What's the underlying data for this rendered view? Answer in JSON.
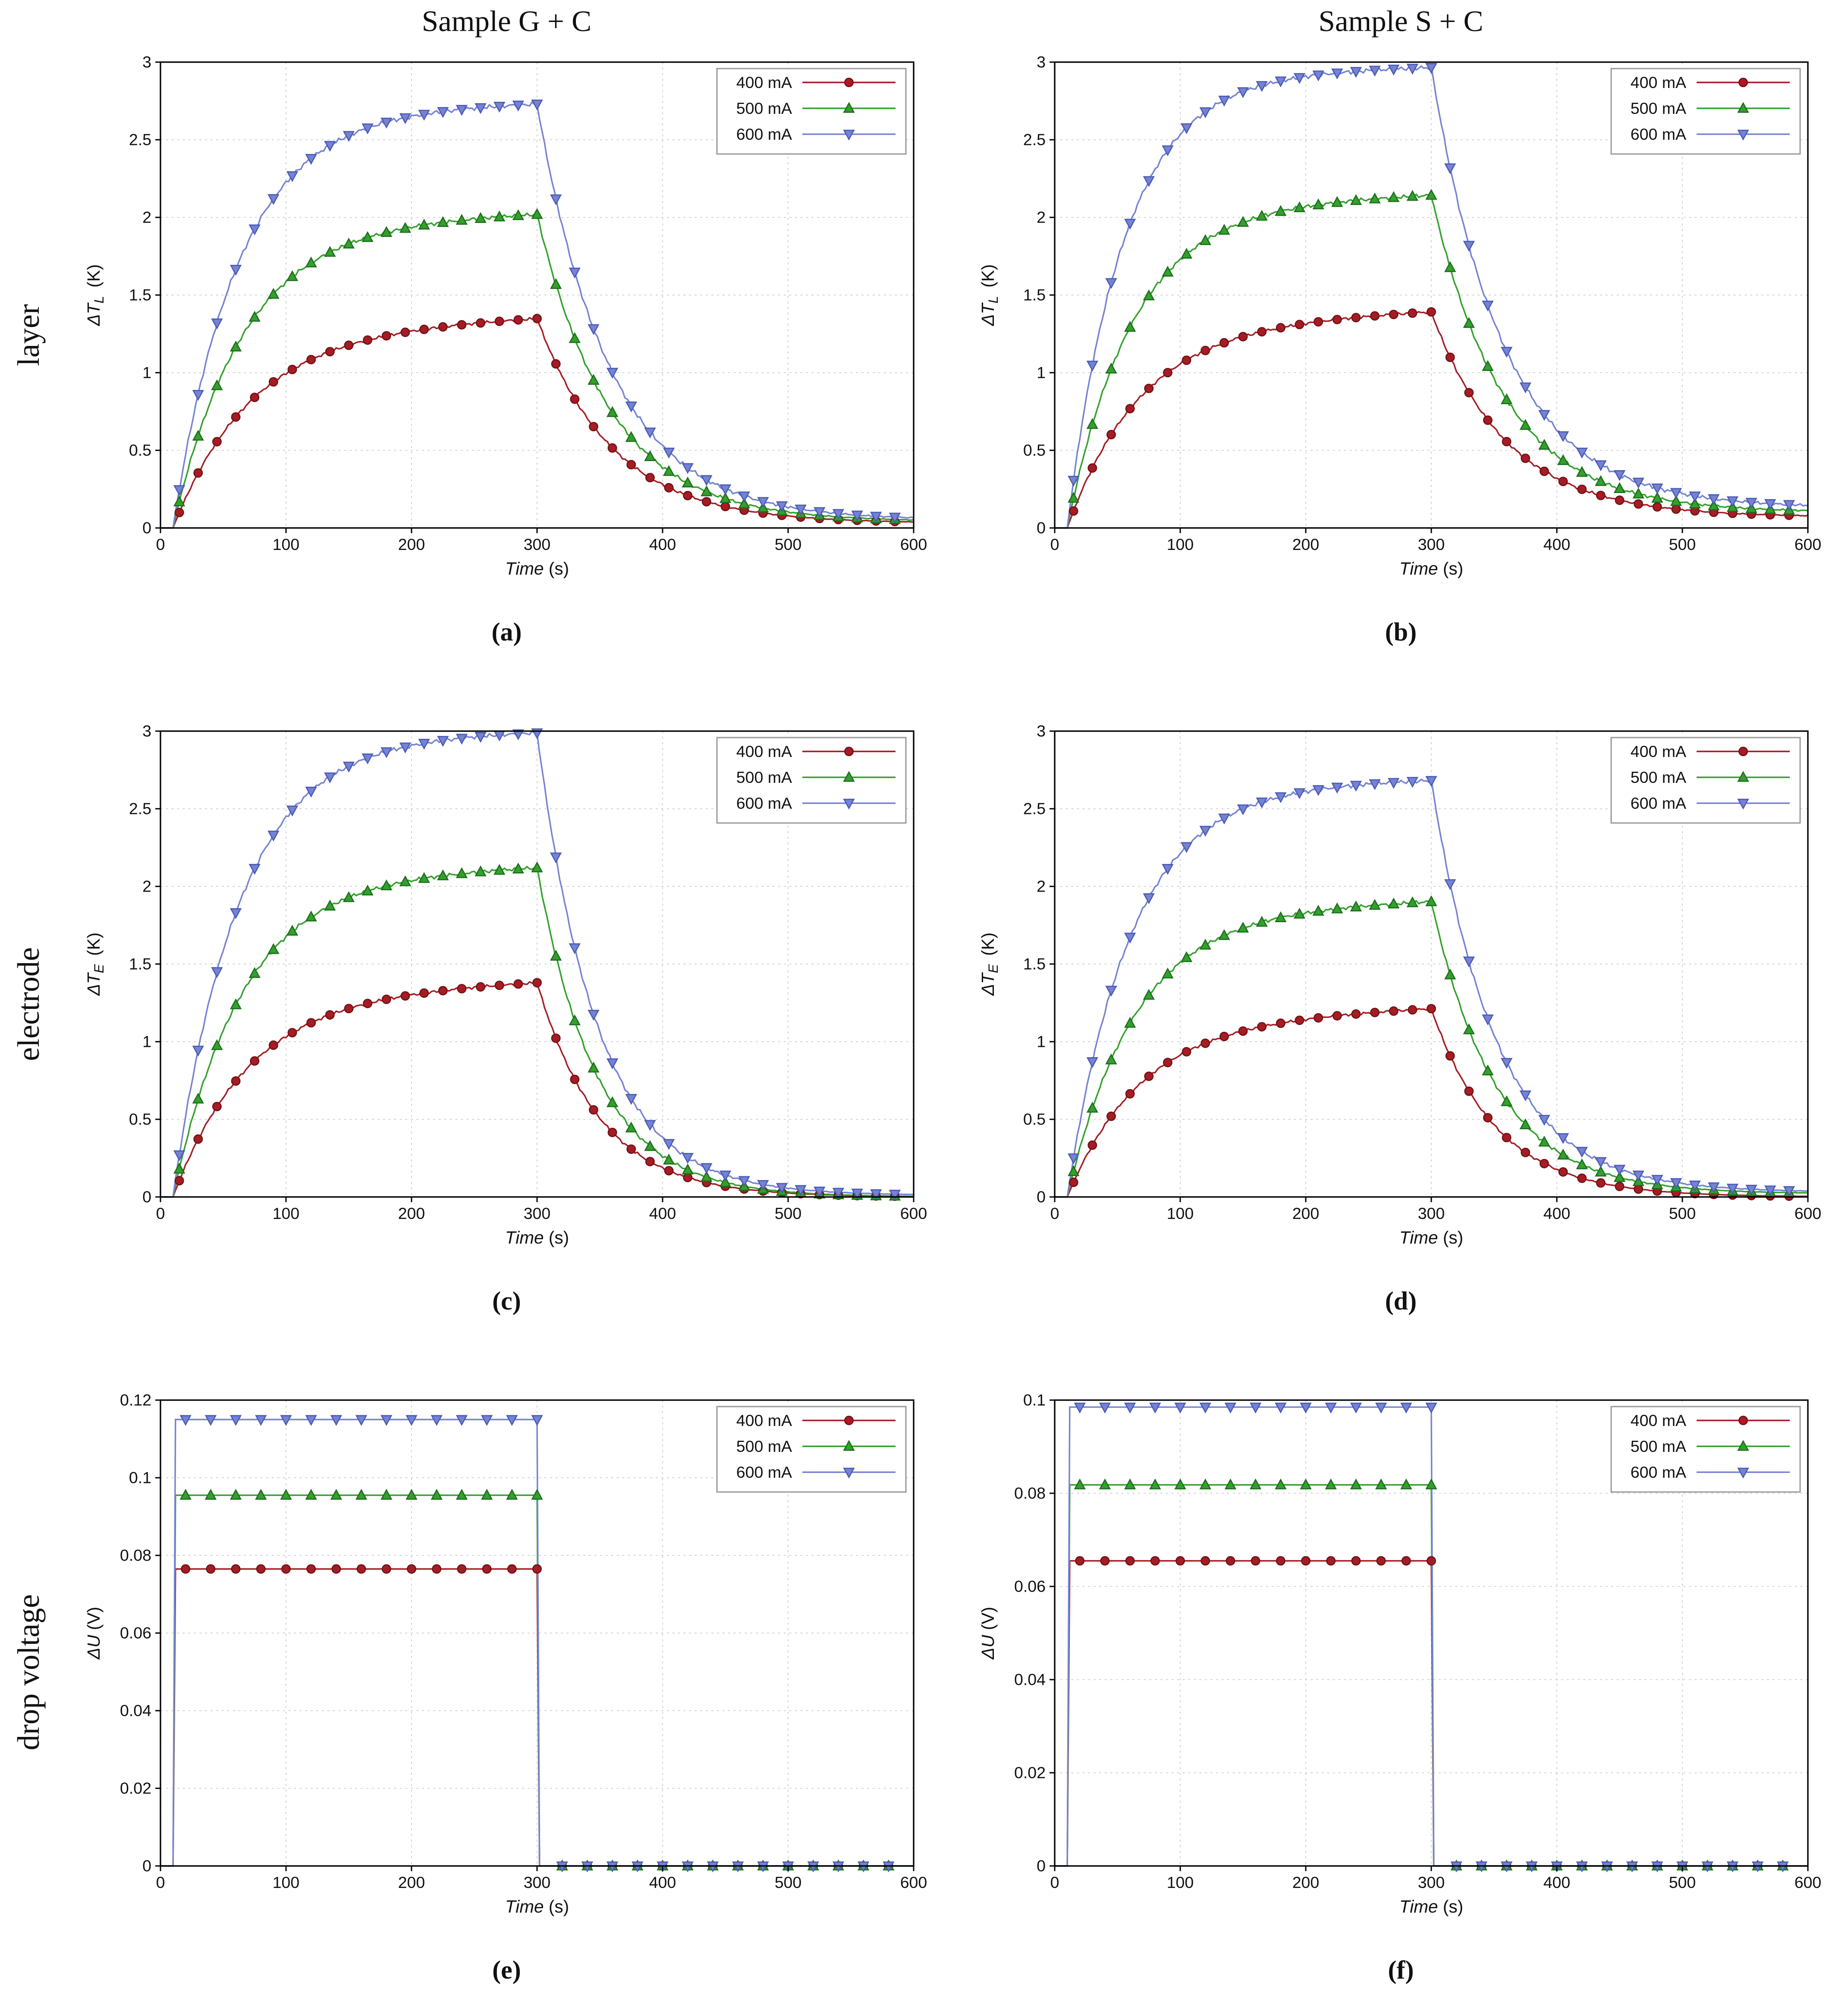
{
  "figure": {
    "row_labels": [
      "layer",
      "electrode",
      "drop voltage"
    ]
  },
  "chart_data": [
    {
      "id": "a",
      "caption": "(a)",
      "title": "Sample G + C",
      "type": "line",
      "xlabel": {
        "text": "Time",
        "unit": "(s)"
      },
      "ylabel": {
        "delta": "Δ",
        "var": "T",
        "sub": "L",
        "unit": "(K)"
      },
      "xlim": [
        0,
        600
      ],
      "ylim": [
        0,
        3
      ],
      "xticks": [
        0,
        100,
        200,
        300,
        400,
        500,
        600
      ],
      "yticks": [
        0,
        0.5,
        1,
        1.5,
        2,
        2.5,
        3
      ],
      "legend_position": "top-right",
      "marker_step": 15,
      "series": [
        {
          "name": "400 mA",
          "color": "#a61c24",
          "edge": "#6f1216",
          "marker": "circle",
          "model": "rise-decay",
          "t_on": 10,
          "t_off": 300,
          "plateau": 1.36,
          "drift": 0.1,
          "tau_rise": 62,
          "tau_decay": 60,
          "end": 0.03,
          "noise": 0.01
        },
        {
          "name": "500 mA",
          "color": "#33a02c",
          "edge": "#1d6e1d",
          "marker": "triangle-up",
          "model": "rise-decay",
          "t_on": 10,
          "t_off": 300,
          "plateau": 2.03,
          "drift": 0.08,
          "tau_rise": 56,
          "tau_decay": 58,
          "end": 0.04,
          "noise": 0.013
        },
        {
          "name": "600 mA",
          "color": "#7583d1",
          "edge": "#4a5ab8",
          "marker": "triangle-down",
          "model": "rise-decay",
          "t_on": 10,
          "t_off": 300,
          "plateau": 2.74,
          "drift": 0.06,
          "tau_rise": 52,
          "tau_decay": 58,
          "end": 0.05,
          "noise": 0.015
        }
      ]
    },
    {
      "id": "b",
      "caption": "(b)",
      "title": "Sample S + C",
      "type": "line",
      "xlabel": {
        "text": "Time",
        "unit": "(s)"
      },
      "ylabel": {
        "delta": "Δ",
        "var": "T",
        "sub": "L",
        "unit": "(K)"
      },
      "xlim": [
        0,
        600
      ],
      "ylim": [
        0,
        3
      ],
      "xticks": [
        0,
        100,
        200,
        300,
        400,
        500,
        600
      ],
      "yticks": [
        0,
        0.5,
        1,
        1.5,
        2,
        2.5,
        3
      ],
      "legend_position": "top-right",
      "marker_step": 15,
      "series": [
        {
          "name": "400 mA",
          "color": "#a61c24",
          "edge": "#6f1216",
          "marker": "circle",
          "model": "rise-decay",
          "t_on": 10,
          "t_off": 300,
          "plateau": 1.4,
          "drift": 0.1,
          "tau_rise": 58,
          "tau_decay": 60,
          "end": 0.07,
          "noise": 0.01
        },
        {
          "name": "500 mA",
          "color": "#33a02c",
          "edge": "#1d6e1d",
          "marker": "triangle-up",
          "model": "rise-decay",
          "t_on": 10,
          "t_off": 300,
          "plateau": 2.15,
          "drift": 0.08,
          "tau_rise": 52,
          "tau_decay": 58,
          "end": 0.1,
          "noise": 0.013
        },
        {
          "name": "600 mA",
          "color": "#7583d1",
          "edge": "#4a5ab8",
          "marker": "triangle-down",
          "model": "rise-decay",
          "t_on": 10,
          "t_off": 300,
          "plateau": 2.97,
          "drift": 0.06,
          "tau_rise": 45,
          "tau_decay": 58,
          "end": 0.13,
          "noise": 0.015
        }
      ]
    },
    {
      "id": "c",
      "caption": "(c)",
      "title": "",
      "type": "line",
      "xlabel": {
        "text": "Time",
        "unit": "(s)"
      },
      "ylabel": {
        "delta": "Δ",
        "var": "T",
        "sub": "E",
        "unit": "(K)"
      },
      "xlim": [
        0,
        600
      ],
      "ylim": [
        0,
        3
      ],
      "xticks": [
        0,
        100,
        200,
        300,
        400,
        500,
        600
      ],
      "yticks": [
        0,
        0.5,
        1,
        1.5,
        2,
        2.5,
        3
      ],
      "legend_position": "top-right",
      "marker_step": 15,
      "series": [
        {
          "name": "400 mA",
          "color": "#a61c24",
          "edge": "#6f1216",
          "marker": "circle",
          "model": "rise-decay",
          "t_on": 10,
          "t_off": 300,
          "plateau": 1.39,
          "drift": 0.1,
          "tau_rise": 60,
          "tau_decay": 50,
          "end": 0.0,
          "noise": 0.01
        },
        {
          "name": "500 mA",
          "color": "#33a02c",
          "edge": "#1d6e1d",
          "marker": "triangle-up",
          "model": "rise-decay",
          "t_on": 10,
          "t_off": 300,
          "plateau": 2.13,
          "drift": 0.08,
          "tau_rise": 55,
          "tau_decay": 48,
          "end": 0.0,
          "noise": 0.013
        },
        {
          "name": "600 mA",
          "color": "#7583d1",
          "edge": "#4a5ab8",
          "marker": "triangle-down",
          "model": "rise-decay",
          "t_on": 10,
          "t_off": 300,
          "plateau": 3.0,
          "drift": 0.05,
          "tau_rise": 52,
          "tau_decay": 48,
          "end": 0.01,
          "noise": 0.014
        }
      ]
    },
    {
      "id": "d",
      "caption": "(d)",
      "title": "",
      "type": "line",
      "xlabel": {
        "text": "Time",
        "unit": "(s)"
      },
      "ylabel": {
        "delta": "Δ",
        "var": "T",
        "sub": "E",
        "unit": "(K)"
      },
      "xlim": [
        0,
        600
      ],
      "ylim": [
        0,
        3
      ],
      "xticks": [
        0,
        100,
        200,
        300,
        400,
        500,
        600
      ],
      "yticks": [
        0,
        0.5,
        1,
        1.5,
        2,
        2.5,
        3
      ],
      "legend_position": "top-right",
      "marker_step": 15,
      "series": [
        {
          "name": "400 mA",
          "color": "#a61c24",
          "edge": "#6f1216",
          "marker": "circle",
          "model": "rise-decay",
          "t_on": 10,
          "t_off": 300,
          "plateau": 1.22,
          "drift": 0.1,
          "tau_rise": 58,
          "tau_decay": 52,
          "end": 0.0,
          "noise": 0.009
        },
        {
          "name": "500 mA",
          "color": "#33a02c",
          "edge": "#1d6e1d",
          "marker": "triangle-up",
          "model": "rise-decay",
          "t_on": 10,
          "t_off": 300,
          "plateau": 1.91,
          "drift": 0.08,
          "tau_rise": 54,
          "tau_decay": 52,
          "end": 0.02,
          "noise": 0.012
        },
        {
          "name": "600 mA",
          "color": "#7583d1",
          "edge": "#4a5ab8",
          "marker": "triangle-down",
          "model": "rise-decay",
          "t_on": 10,
          "t_off": 300,
          "plateau": 2.69,
          "drift": 0.06,
          "tau_rise": 50,
          "tau_decay": 52,
          "end": 0.03,
          "noise": 0.014
        }
      ]
    },
    {
      "id": "e",
      "caption": "(e)",
      "title": "",
      "type": "line",
      "xlabel": {
        "text": "Time",
        "unit": "(s)"
      },
      "ylabel": {
        "delta": "Δ",
        "var": "U",
        "sub": "",
        "unit": "(V)"
      },
      "xlim": [
        0,
        600
      ],
      "ylim": [
        0,
        0.12
      ],
      "xticks": [
        0,
        100,
        200,
        300,
        400,
        500,
        600
      ],
      "yticks": [
        0,
        0.02,
        0.04,
        0.06,
        0.08,
        0.1,
        0.12
      ],
      "legend_position": "top-right",
      "marker_step": 20,
      "series": [
        {
          "name": "400 mA",
          "color": "#a61c24",
          "edge": "#6f1216",
          "marker": "circle",
          "model": "pulse",
          "t_on": 10,
          "t_off": 300,
          "value": 0.0765
        },
        {
          "name": "500 mA",
          "color": "#33a02c",
          "edge": "#1d6e1d",
          "marker": "triangle-up",
          "model": "pulse",
          "t_on": 10,
          "t_off": 300,
          "value": 0.0955
        },
        {
          "name": "600 mA",
          "color": "#7583d1",
          "edge": "#4a5ab8",
          "marker": "triangle-down",
          "model": "pulse",
          "t_on": 10,
          "t_off": 300,
          "value": 0.115
        }
      ]
    },
    {
      "id": "f",
      "caption": "(f)",
      "title": "",
      "type": "line",
      "xlabel": {
        "text": "Time",
        "unit": "(s)"
      },
      "ylabel": {
        "delta": "Δ",
        "var": "U",
        "sub": "",
        "unit": "(V)"
      },
      "xlim": [
        0,
        600
      ],
      "ylim": [
        0,
        0.1
      ],
      "xticks": [
        0,
        100,
        200,
        300,
        400,
        500,
        600
      ],
      "yticks": [
        0,
        0.02,
        0.04,
        0.06,
        0.08,
        0.1
      ],
      "legend_position": "top-right",
      "marker_step": 20,
      "series": [
        {
          "name": "400 mA",
          "color": "#a61c24",
          "edge": "#6f1216",
          "marker": "circle",
          "model": "pulse",
          "t_on": 10,
          "t_off": 300,
          "value": 0.0655
        },
        {
          "name": "500 mA",
          "color": "#33a02c",
          "edge": "#1d6e1d",
          "marker": "triangle-up",
          "model": "pulse",
          "t_on": 10,
          "t_off": 300,
          "value": 0.0818
        },
        {
          "name": "600 mA",
          "color": "#7583d1",
          "edge": "#4a5ab8",
          "marker": "triangle-down",
          "model": "pulse",
          "t_on": 10,
          "t_off": 300,
          "value": 0.0985
        }
      ]
    }
  ]
}
